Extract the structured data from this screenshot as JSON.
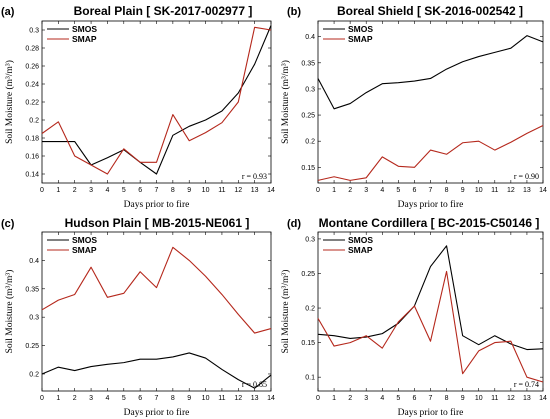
{
  "colors": {
    "SMOS": "#000000",
    "SMAP": "#b5281c"
  },
  "chart_data": [
    {
      "type": "line",
      "panel_label": "(a)",
      "title": "Boreal Plain [ SK-2017-002977 ]",
      "xlabel": "Days prior to fire",
      "ylabel": "Soil Moisture (m³/m³)",
      "x": [
        0,
        1,
        2,
        3,
        4,
        5,
        6,
        7,
        8,
        9,
        10,
        11,
        12,
        13,
        14
      ],
      "xlim": [
        0,
        14
      ],
      "ylim": [
        0.13,
        0.31
      ],
      "yticks": [
        0.14,
        0.16,
        0.18,
        0.2,
        0.22,
        0.24,
        0.26,
        0.28,
        0.3
      ],
      "ytick_labels": [
        "0.14",
        "0.16",
        "0.18",
        "0.2",
        "0.22",
        "0.24",
        "0.26",
        "0.28",
        "0.3"
      ],
      "legend": "top-left",
      "r_label": "r = 0.93",
      "series": [
        {
          "name": "SMOS",
          "values": [
            0.176,
            0.176,
            0.176,
            0.15,
            0.158,
            0.167,
            0.153,
            0.14,
            0.183,
            0.193,
            0.2,
            0.21,
            0.23,
            0.262,
            0.305
          ]
        },
        {
          "name": "SMAP",
          "values": [
            0.185,
            0.198,
            0.16,
            0.15,
            0.14,
            0.168,
            0.153,
            0.153,
            0.206,
            0.177,
            0.186,
            0.197,
            0.22,
            0.303,
            0.3
          ]
        }
      ]
    },
    {
      "type": "line",
      "panel_label": "(b)",
      "title": "Boreal Shield [ SK-2016-002542 ]",
      "xlabel": "Days prior to fire",
      "ylabel": "Soil Moisture (m³/m³)",
      "x": [
        0,
        1,
        2,
        3,
        4,
        5,
        6,
        7,
        8,
        9,
        10,
        11,
        12,
        13,
        14
      ],
      "xlim": [
        0,
        14
      ],
      "ylim": [
        0.12,
        0.43
      ],
      "yticks": [
        0.15,
        0.2,
        0.25,
        0.3,
        0.35,
        0.4
      ],
      "ytick_labels": [
        "0.15",
        "0.2",
        "0.25",
        "0.3",
        "0.35",
        "0.4"
      ],
      "legend": "top-left",
      "r_label": "r = 0.90",
      "series": [
        {
          "name": "SMOS",
          "values": [
            0.32,
            0.262,
            0.272,
            0.293,
            0.31,
            0.312,
            0.315,
            0.32,
            0.338,
            0.352,
            0.362,
            0.37,
            0.378,
            0.402,
            0.39
          ]
        },
        {
          "name": "SMAP",
          "values": [
            0.125,
            0.132,
            0.125,
            0.13,
            0.17,
            0.152,
            0.15,
            0.183,
            0.175,
            0.197,
            0.2,
            0.183,
            0.198,
            0.215,
            0.23
          ]
        }
      ]
    },
    {
      "type": "line",
      "panel_label": "(c)",
      "title": "Hudson Plain [ MB-2015-NE061 ]",
      "xlabel": "Days prior to fire",
      "ylabel": "Soil Moisture (m³/m³)",
      "x": [
        0,
        1,
        2,
        3,
        4,
        5,
        6,
        7,
        8,
        9,
        10,
        11,
        12,
        13,
        14
      ],
      "xlim": [
        0,
        14
      ],
      "ylim": [
        0.17,
        0.45
      ],
      "yticks": [
        0.2,
        0.25,
        0.3,
        0.35,
        0.4
      ],
      "ytick_labels": [
        "0.2",
        "0.25",
        "0.3",
        "0.35",
        "0.4"
      ],
      "legend": "top-left",
      "r_label": "r = 0.85",
      "series": [
        {
          "name": "SMOS",
          "values": [
            0.2,
            0.212,
            0.206,
            0.213,
            0.217,
            0.22,
            0.226,
            0.226,
            0.23,
            0.237,
            0.228,
            0.208,
            0.19,
            0.175,
            0.198
          ]
        },
        {
          "name": "SMAP",
          "values": [
            0.313,
            0.33,
            0.34,
            0.388,
            0.335,
            0.342,
            0.38,
            0.352,
            0.423,
            0.4,
            0.372,
            0.34,
            0.305,
            0.272,
            0.28
          ]
        }
      ]
    },
    {
      "type": "line",
      "panel_label": "(d)",
      "title": "Montane Cordillera [ BC-2015-C50146 ]",
      "xlabel": "Days prior to fire",
      "ylabel": "Soil Moisture (m³/m³)",
      "x": [
        0,
        1,
        2,
        3,
        4,
        5,
        6,
        7,
        8,
        9,
        10,
        11,
        12,
        13,
        14
      ],
      "xlim": [
        0,
        14
      ],
      "ylim": [
        0.08,
        0.31
      ],
      "yticks": [
        0.1,
        0.15,
        0.2,
        0.25,
        0.3
      ],
      "ytick_labels": [
        "0.1",
        "0.15",
        "0.2",
        "0.25",
        "0.3"
      ],
      "legend": "top-left",
      "r_label": "r = 0.74",
      "series": [
        {
          "name": "SMOS",
          "values": [
            0.162,
            0.16,
            0.156,
            0.158,
            0.163,
            0.178,
            0.203,
            0.26,
            0.29,
            0.16,
            0.147,
            0.16,
            0.148,
            0.14,
            0.141
          ]
        },
        {
          "name": "SMAP",
          "values": [
            0.185,
            0.145,
            0.15,
            0.16,
            0.142,
            0.18,
            0.203,
            0.152,
            0.253,
            0.105,
            0.138,
            0.15,
            0.152,
            0.1,
            0.093
          ]
        }
      ]
    }
  ]
}
